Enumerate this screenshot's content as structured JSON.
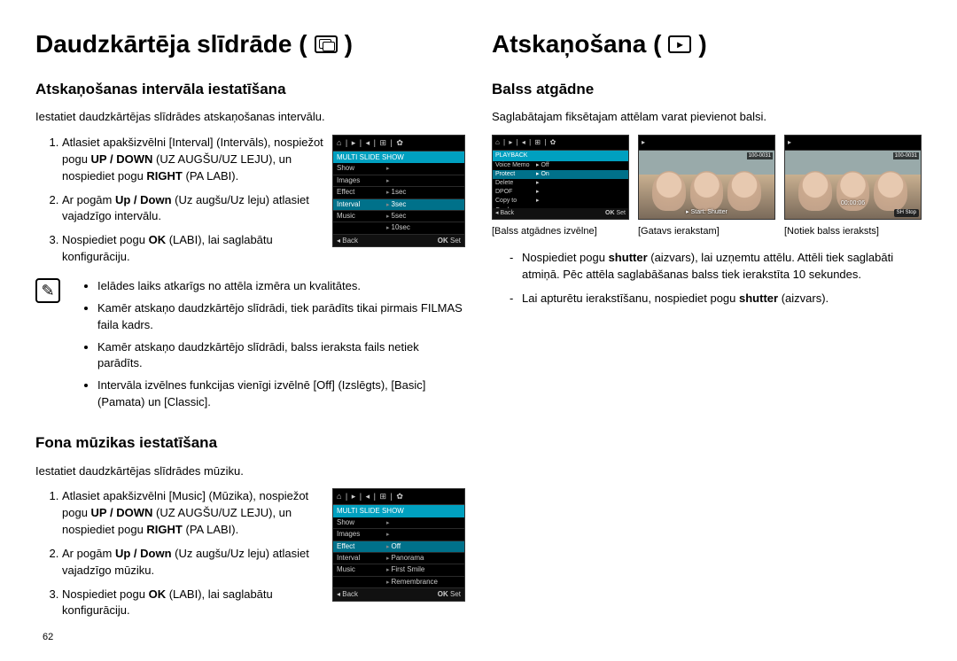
{
  "page_number": "62",
  "left": {
    "h1": "Daudzkārtēja slīdrāde (",
    "h1_close": ")",
    "section1": {
      "h2": "Atskaņošanas intervāla iestatīšana",
      "intro": "Iestatiet daudzkārtējas slīdrādes atskaņošanas intervālu.",
      "steps": [
        "Atlasiet apakšizvēlni [Interval] (Intervāls), nospiežot pogu UP / DOWN (UZ AUGŠU/UZ LEJU), un nospiediet pogu RIGHT (PA LABI).",
        "Ar pogām Up / Down (Uz augšu/Uz leju) atlasiet vajadzīgo intervālu.",
        "Nospiediet pogu  OK (LABI), lai saglabātu konfigurāciju."
      ],
      "step_bold": {
        "0": [
          "UP / DOWN",
          "RIGHT"
        ],
        "1": [
          "Up / Down"
        ],
        "2": [
          "OK"
        ]
      },
      "screenshot": {
        "topbar": "⌂ | ▸ | ◂ | ⊞ | ✿",
        "title": "MULTI SLIDE SHOW",
        "rows": [
          {
            "l": "Show",
            "r": ""
          },
          {
            "l": "Images",
            "r": ""
          },
          {
            "l": "Effect",
            "r": "1sec"
          },
          {
            "l": "Interval",
            "r": "3sec",
            "sel": true
          },
          {
            "l": "Music",
            "r": "5sec"
          },
          {
            "l": "",
            "r": "10sec"
          }
        ],
        "foot_back": "Back",
        "foot_ok": "OK Set"
      },
      "notes": [
        "Ielādes laiks atkarīgs no attēla izmēra un kvalitātes.",
        "Kamēr atskaņo daudzkārtējo slīdrādi, tiek parādīts tikai pirmais FILMAS faila kadrs.",
        "Kamēr atskaņo daudzkārtējo slīdrādi, balss ieraksta fails netiek parādīts.",
        "Intervāla izvēlnes funkcijas vienīgi izvēlnē [Off] (Izslēgts), [Basic] (Pamata) un [Classic]."
      ]
    },
    "section2": {
      "h2": "Fona mūzikas iestatīšana",
      "intro": "Iestatiet daudzkārtējas slīdrādes mūziku.",
      "steps": [
        "Atlasiet apakšizvēlni [Music] (Mūzika), nospiežot pogu UP / DOWN (UZ AUGŠU/UZ LEJU), un nospiediet pogu RIGHT (PA LABI).",
        "Ar pogām Up / Down (Uz augšu/Uz leju) atlasiet vajadzīgo mūziku.",
        "Nospiediet pogu  OK (LABI), lai saglabātu konfigurāciju."
      ],
      "step_bold": {
        "0": [
          "UP / DOWN",
          "RIGHT"
        ],
        "1": [
          "Up / Down"
        ],
        "2": [
          "OK"
        ]
      },
      "screenshot": {
        "topbar": "⌂ | ▸ | ◂ | ⊞ | ✿",
        "title": "MULTI SLIDE SHOW",
        "rows": [
          {
            "l": "Show",
            "r": ""
          },
          {
            "l": "Images",
            "r": ""
          },
          {
            "l": "Effect",
            "r": "Off",
            "sel": true
          },
          {
            "l": "Interval",
            "r": "Panorama"
          },
          {
            "l": "Music",
            "r": "First Smile"
          },
          {
            "l": "",
            "r": "Remembrance"
          }
        ],
        "foot_back": "Back",
        "foot_ok": "OK Set"
      }
    }
  },
  "right": {
    "h1": "Atskaņošana (",
    "h1_close": ")",
    "h2": "Balss atgādne",
    "intro": "Saglabātajam fiksētajam attēlam varat pievienot balsi.",
    "minis": [
      {
        "type": "menu",
        "topbar": "⌂ | ▸ | ◂ | ⊞ | ✿",
        "title": "PLAYBACK",
        "rows": [
          {
            "l": "Voice Memo",
            "r": "Off"
          },
          {
            "l": "Protect",
            "r": "On",
            "sel": true
          },
          {
            "l": "Delete",
            "r": ""
          },
          {
            "l": "DPOF",
            "r": ""
          },
          {
            "l": "Copy to Card",
            "r": ""
          }
        ],
        "foot_back": "Back",
        "foot_ok": "OK Set",
        "caption": "[Balss atgādnes izvēlne]"
      },
      {
        "type": "photo",
        "tag": "100-0031",
        "cap": "▸ Start: Shutter",
        "caption": "[Gatavs ierakstam]"
      },
      {
        "type": "photo",
        "tag": "100-0031",
        "time": "00:00:06",
        "btn": "SH Stop",
        "caption": "[Notiek balss ieraksts]"
      }
    ],
    "dashes": [
      "Nospiediet pogu  shutter (aizvars), lai uzņemtu attēlu. Attēli tiek saglabāti atmiņā. Pēc attēla saglabāšanas balss tiek ierakstīta 10 sekundes.",
      "Lai apturētu ierakstīšanu, nospiediet pogu shutter (aizvars)."
    ],
    "dash_bold": {
      "0": [
        "shutter"
      ],
      "1": [
        "shutter"
      ]
    }
  }
}
